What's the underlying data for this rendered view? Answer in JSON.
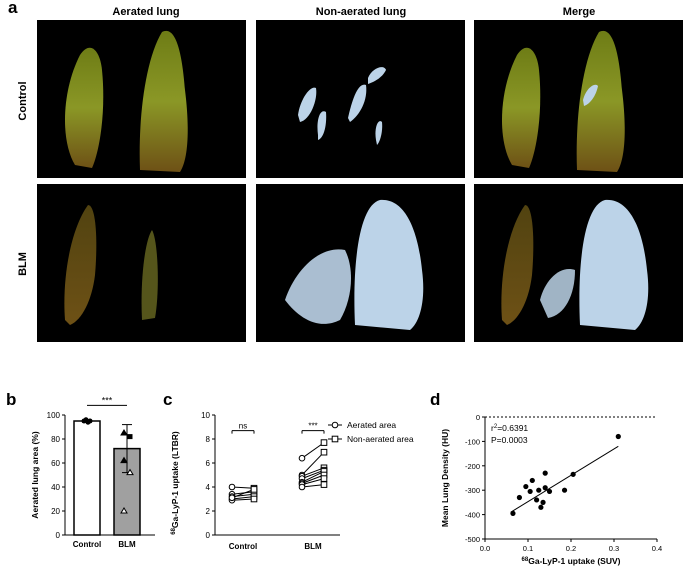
{
  "panel_letters": {
    "a": "a",
    "b": "b",
    "c": "c",
    "d": "d"
  },
  "panel_a": {
    "columns": [
      "Aerated lung",
      "Non-aerated lung",
      "Merge"
    ],
    "rows": [
      "Control",
      "BLM"
    ]
  },
  "colors": {
    "aerated": "#8a9a2a",
    "non_aerated": "#bcd3e8",
    "black": "#000000",
    "bar_blm": "#a0a0a0"
  },
  "chart_data": [
    {
      "panel": "b",
      "type": "bar",
      "categories": [
        "Control",
        "BLM"
      ],
      "values": [
        95,
        72
      ],
      "errors": [
        1,
        20
      ],
      "points": {
        "Control": [
          95,
          96,
          94,
          95
        ],
        "BLM": [
          85,
          82,
          62,
          52,
          20
        ]
      },
      "ylabel": "Aerated lung area (%)",
      "yticks": [
        "0",
        "20",
        "40",
        "60",
        "80",
        "100"
      ],
      "ylim": [
        0,
        100
      ],
      "significance": "***"
    },
    {
      "panel": "c",
      "type": "line",
      "ylabel_sup": "68",
      "ylabel": "Ga-LyP-1 uptake (LTBR)",
      "yticks": [
        "0",
        "2",
        "4",
        "6",
        "8",
        "10"
      ],
      "ylim": [
        0,
        10
      ],
      "categories": [
        "Control",
        "BLM"
      ],
      "series": [
        {
          "name": "Aerated area",
          "marker": "circle"
        },
        {
          "name": "Non-aerated area",
          "marker": "square"
        }
      ],
      "pairs": {
        "Control": [
          [
            4.0,
            3.9
          ],
          [
            3.4,
            3.6
          ],
          [
            3.2,
            3.4
          ],
          [
            3.0,
            3.2
          ],
          [
            2.9,
            3.0
          ],
          [
            3.1,
            3.8
          ]
        ],
        "BLM": [
          [
            6.4,
            7.7
          ],
          [
            5.0,
            6.9
          ],
          [
            4.9,
            5.6
          ],
          [
            4.7,
            5.4
          ],
          [
            4.4,
            5.3
          ],
          [
            4.3,
            5.0
          ],
          [
            4.2,
            4.7
          ],
          [
            4.0,
            4.2
          ]
        ]
      },
      "significance": [
        "ns",
        "***"
      ]
    },
    {
      "panel": "d",
      "type": "scatter",
      "xlabel_sup": "68",
      "xlabel": "Ga-LyP-1 uptake (SUV)",
      "ylabel": "Mean Lung Density (HU)",
      "xticks": [
        "0.0",
        "0.1",
        "0.2",
        "0.3",
        "0.4"
      ],
      "yticks": [
        "0",
        "-100",
        "-200",
        "-300",
        "-400",
        "-500"
      ],
      "xlim": [
        0,
        0.4
      ],
      "ylim": [
        -500,
        0
      ],
      "x": [
        0.065,
        0.08,
        0.095,
        0.105,
        0.11,
        0.12,
        0.125,
        0.13,
        0.135,
        0.14,
        0.14,
        0.15,
        0.185,
        0.205,
        0.31
      ],
      "y": [
        -395,
        -330,
        -285,
        -305,
        -260,
        -340,
        -300,
        -370,
        -350,
        -290,
        -230,
        -305,
        -300,
        -235,
        -80
      ],
      "fit": {
        "x0": 0.06,
        "y0": -390,
        "x1": 0.31,
        "y1": -120
      },
      "annotation": {
        "r2_prefix": "r",
        "r2_sup": "2",
        "r2_value": "=0.6391",
        "p": "P=0.0003"
      }
    }
  ]
}
